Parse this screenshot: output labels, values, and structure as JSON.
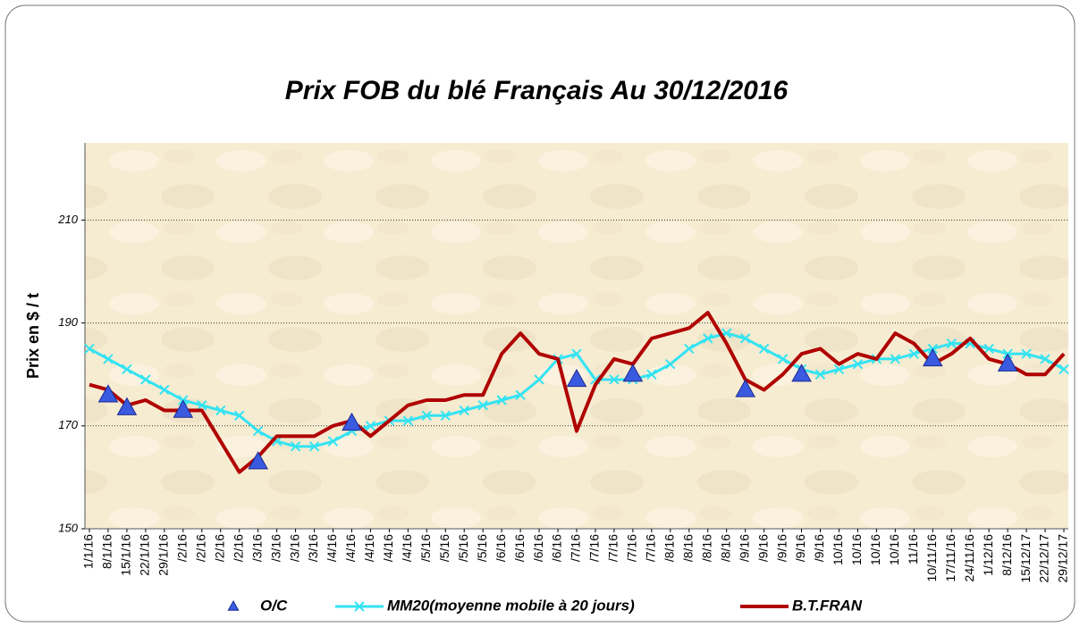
{
  "chart_data": {
    "type": "line",
    "title": "Prix FOB  du blé Français Au  30/12/2016",
    "y_label": "Prix en $ / t",
    "categories": [
      "1/1/16",
      "8/1/16",
      "15/1/16",
      "22/1/16",
      "29/1/16",
      "/2/16",
      "/2/16",
      "/2/16",
      "/2/16",
      "/3/16",
      "/3/16",
      "/3/16",
      "/3/16",
      "/4/16",
      "/4/16",
      "/4/16",
      "/4/16",
      "/4/16",
      "/5/16",
      "/5/16",
      "/5/16",
      "/5/16",
      "/6/16",
      "/6/16",
      "/6/16",
      "/6/16",
      "/7/16",
      "/7/16",
      "/7/16",
      "/7/16",
      "/7/16",
      "/8/16",
      "/8/16",
      "/8/16",
      "/8/16",
      "/9/16",
      "/9/16",
      "/9/16",
      "/9/16",
      "/9/16",
      "10/16",
      "10/16",
      "10/16",
      "10/16",
      "11/16",
      "10/11/16",
      "17/11/16",
      "24/11/16",
      "1/12/16",
      "8/12/16",
      "15/12/17",
      "22/12/17",
      "29/12/17"
    ],
    "series": [
      {
        "name": "O/C",
        "color": "#3a5ae0",
        "style": "markers",
        "values": [
          null,
          176,
          173.5,
          null,
          null,
          173,
          null,
          null,
          null,
          163,
          null,
          null,
          null,
          null,
          170.5,
          null,
          null,
          null,
          null,
          null,
          null,
          null,
          null,
          null,
          null,
          null,
          179,
          null,
          null,
          180,
          null,
          null,
          null,
          null,
          null,
          177,
          null,
          null,
          180,
          null,
          null,
          null,
          null,
          null,
          null,
          183,
          null,
          null,
          null,
          182,
          null,
          null,
          null
        ]
      },
      {
        "name": "MM20(moyenne mobile à 20 jours)",
        "color": "#33e3f2",
        "style": "line-x",
        "values": [
          185,
          183,
          181,
          179,
          177,
          175,
          174,
          173,
          172,
          169,
          167,
          166,
          166,
          167,
          169,
          170,
          171,
          171,
          172,
          172,
          173,
          174,
          175,
          176,
          179,
          183,
          184,
          179,
          179,
          179,
          180,
          182,
          185,
          187,
          188,
          187,
          185,
          183,
          181,
          180,
          181,
          182,
          183,
          183,
          184,
          185,
          186,
          186,
          185,
          184,
          184,
          183,
          181
        ]
      },
      {
        "name": "B.T.FRAN",
        "color": "#b00000",
        "style": "line",
        "values": [
          178,
          177,
          174,
          175,
          173,
          173,
          173,
          167,
          161,
          164,
          168,
          168,
          168,
          170,
          171,
          168,
          171,
          174,
          175,
          175,
          176,
          176,
          184,
          188,
          184,
          183,
          169,
          178,
          183,
          182,
          187,
          188,
          189,
          192,
          186,
          179,
          177,
          180,
          184,
          185,
          182,
          184,
          183,
          188,
          186,
          182,
          184,
          187,
          183,
          182,
          180,
          180,
          184
        ]
      }
    ],
    "ylim": [
      150,
      225
    ],
    "yticks": [
      150,
      170,
      190,
      210
    ],
    "grid": true,
    "legend": "bottom"
  }
}
